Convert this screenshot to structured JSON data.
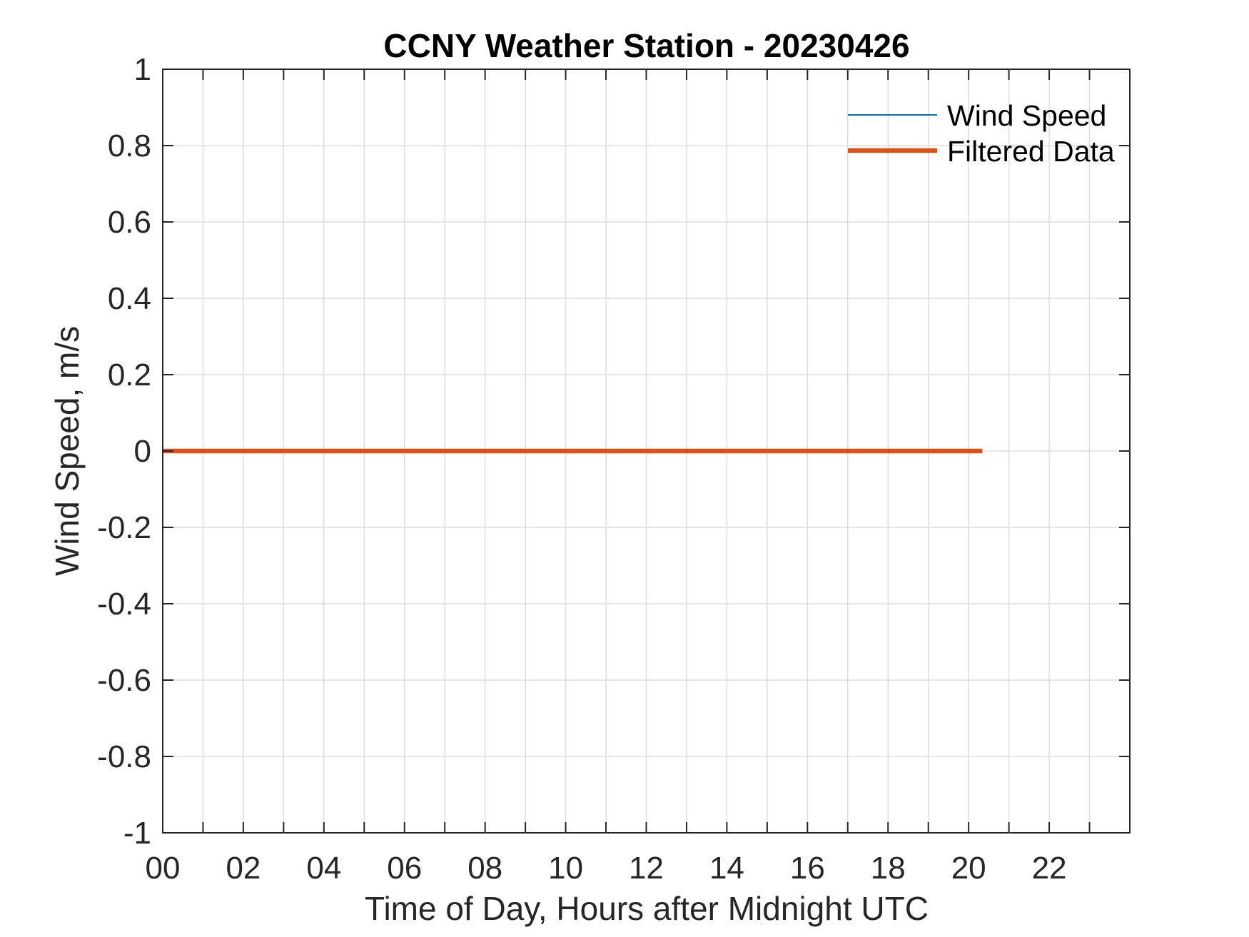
{
  "chart_data": {
    "type": "line",
    "title": "CCNY Weather Station - 20230426",
    "xlabel": "Time of Day, Hours after Midnight UTC",
    "ylabel": "Wind Speed, m/s",
    "xlim": [
      0,
      24
    ],
    "ylim": [
      -1,
      1
    ],
    "x_tick_step": 1,
    "x_labeled_ticks": [
      0,
      2,
      4,
      6,
      8,
      10,
      12,
      14,
      16,
      18,
      20,
      22
    ],
    "x_tick_labels": [
      "00",
      "02",
      "04",
      "06",
      "08",
      "10",
      "12",
      "14",
      "16",
      "18",
      "20",
      "22"
    ],
    "y_ticks": [
      -1,
      -0.8,
      -0.6,
      -0.4,
      -0.2,
      0,
      0.2,
      0.4,
      0.6,
      0.8,
      1
    ],
    "y_tick_labels": [
      "-1",
      "-0.8",
      "-0.6",
      "-0.4",
      "-0.2",
      "0",
      "0.2",
      "0.4",
      "0.6",
      "0.8",
      "1"
    ],
    "grid": true,
    "legend": {
      "position": "northeast-inside",
      "box": false,
      "entries": [
        "Wind Speed",
        "Filtered Data"
      ]
    },
    "series": [
      {
        "name": "Wind Speed",
        "color": "#0072BD",
        "linewidth": 2,
        "x": [
          0,
          20.34
        ],
        "y": [
          0,
          0
        ]
      },
      {
        "name": "Filtered Data",
        "color": "#D95319",
        "linewidth": 6.5,
        "x": [
          0,
          20.34
        ],
        "y": [
          0,
          0
        ]
      }
    ],
    "colors": {
      "axis": "#262626",
      "grid": "#dedede",
      "tick_text": "#262626",
      "title_text": "#000000",
      "background": "#ffffff"
    }
  }
}
